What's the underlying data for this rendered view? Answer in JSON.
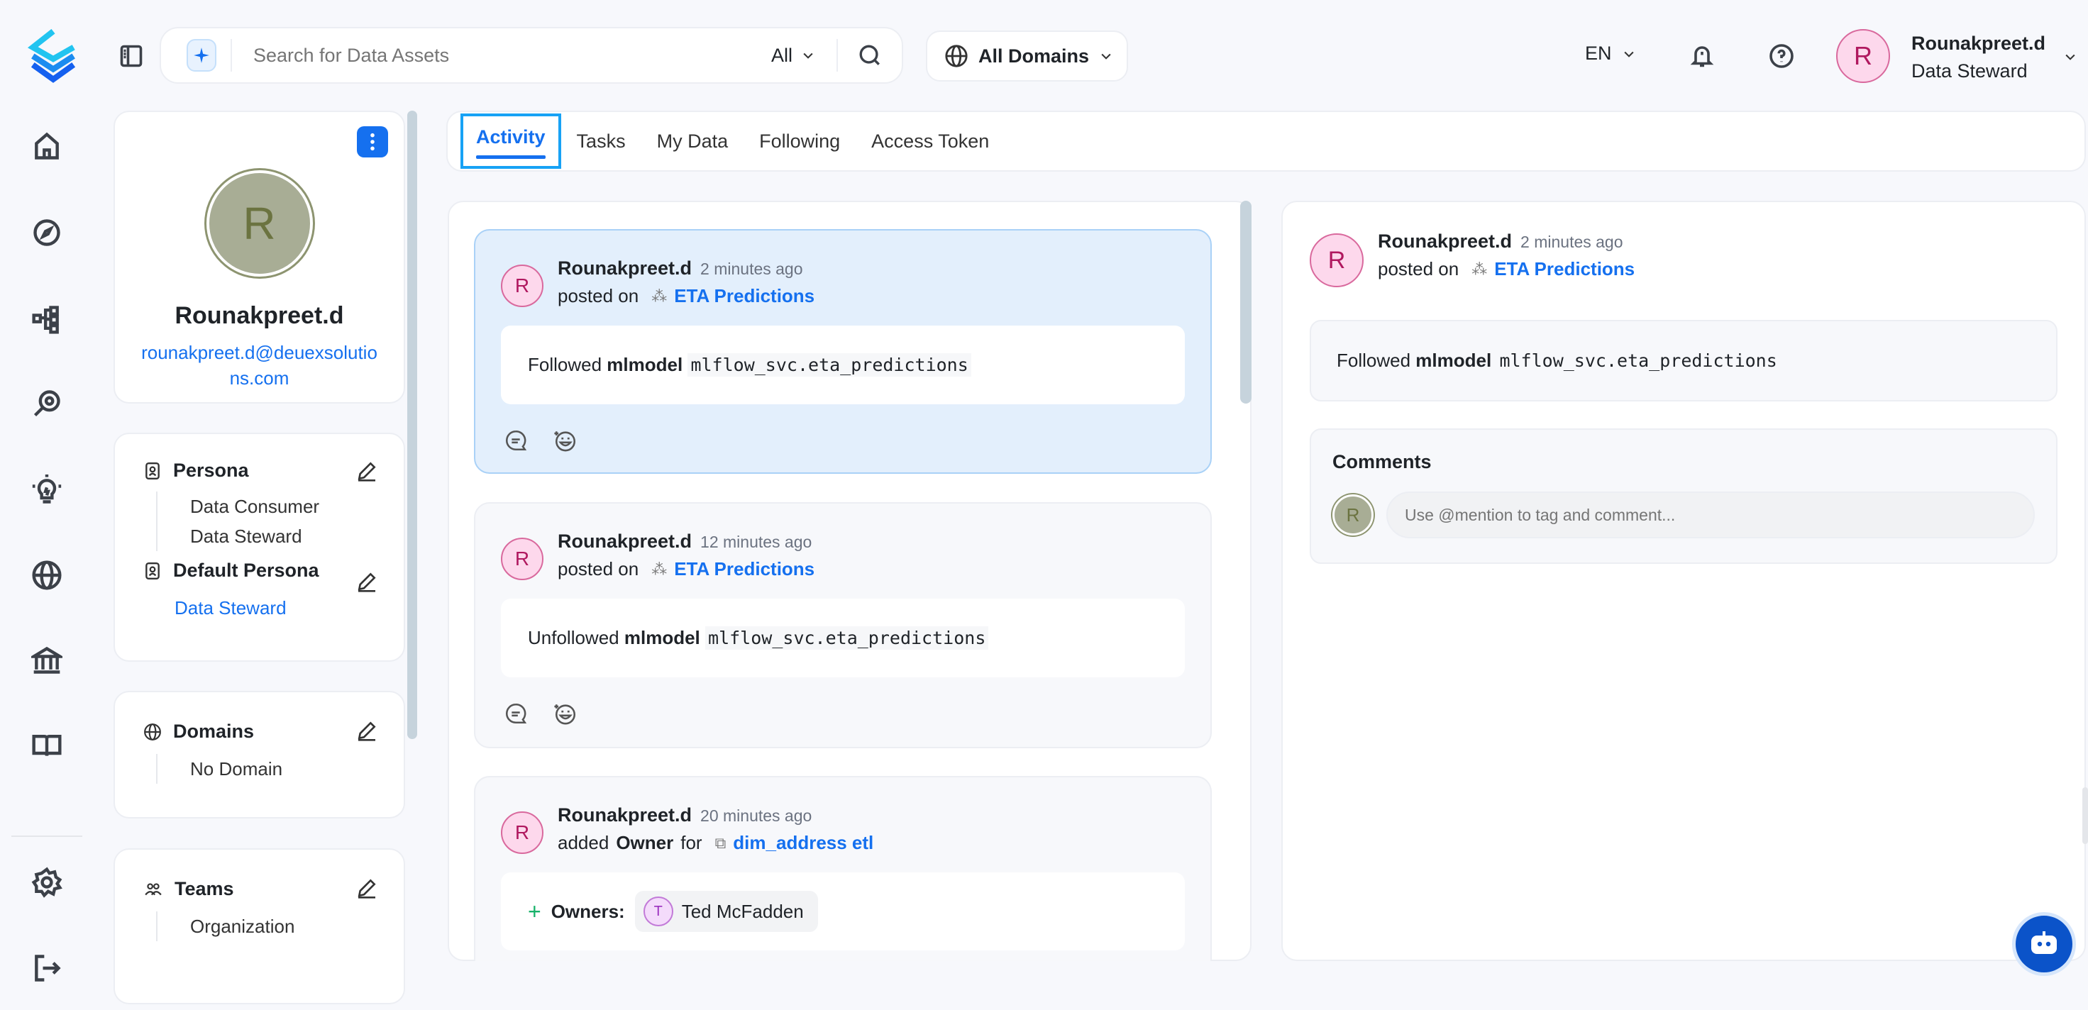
{
  "header": {
    "search_placeholder": "Search for Data Assets",
    "search_scope": "All",
    "domains": "All Domains",
    "language": "EN",
    "user_name": "Rounakpreet.d",
    "user_role": "Data Steward",
    "user_initial": "R"
  },
  "nav": [
    "home-icon",
    "explore-icon",
    "lineage-icon",
    "observability-icon",
    "insights-icon",
    "domains-icon",
    "governance-icon",
    "glossary-icon",
    "settings-icon",
    "logout-icon"
  ],
  "profile": {
    "initial": "R",
    "name": "Rounakpreet.d",
    "email": "rounakpreet.d@deuexsolutions.com",
    "persona_label": "Persona",
    "personas": [
      "Data Consumer",
      "Data Steward"
    ],
    "default_persona_label": "Default Persona",
    "default_persona": "Data Steward",
    "domains_label": "Domains",
    "domains_value": "No Domain",
    "teams_label": "Teams",
    "teams_value": "Organization"
  },
  "tabs": [
    "Activity",
    "Tasks",
    "My Data",
    "Following",
    "Access Token"
  ],
  "feed": [
    {
      "user": "Rounakpreet.d",
      "time": "2 minutes ago",
      "action": "posted on",
      "entity": "ETA Predictions",
      "verb": "Followed",
      "type": "mlmodel",
      "fqn": "mlflow_svc.eta_predictions"
    },
    {
      "user": "Rounakpreet.d",
      "time": "12 minutes ago",
      "action": "posted on",
      "entity": "ETA Predictions",
      "verb": "Unfollowed",
      "type": "mlmodel",
      "fqn": "mlflow_svc.eta_predictions"
    },
    {
      "user": "Rounakpreet.d",
      "time": "20 minutes ago",
      "action_pre": "added",
      "action_bold": "Owner",
      "action_post": "for",
      "entity": "dim_address etl",
      "owners_label": "Owners:",
      "owner_initial": "T",
      "owner": "Ted McFadden"
    }
  ],
  "detail": {
    "user": "Rounakpreet.d",
    "time": "2 minutes ago",
    "action": "posted on",
    "entity": "ETA Predictions",
    "verb": "Followed",
    "type": "mlmodel",
    "fqn": "mlflow_svc.eta_predictions",
    "comments_label": "Comments",
    "comment_placeholder": "Use @mention to tag and comment...",
    "commenter_initial": "R"
  },
  "colors": {
    "accent": "#1570ef",
    "avatar_bg": "#fdd8ec",
    "avatar_fg": "#b0185f",
    "active_card": "#e3effc"
  }
}
